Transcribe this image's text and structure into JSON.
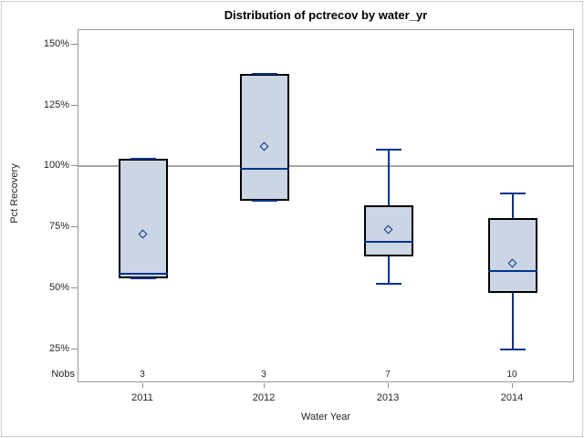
{
  "page": {
    "background": "#ffffff",
    "border_color": "#c9ced3"
  },
  "chart_data": {
    "type": "boxplot",
    "title": "Distribution of pctrecov by water_yr",
    "xlabel": "Water Year",
    "ylabel": "Pct Recovery",
    "nobs_label": "Nobs",
    "categories": [
      "2011",
      "2012",
      "2013",
      "2014"
    ],
    "nobs": [
      3,
      3,
      7,
      10
    ],
    "yticks": [
      150,
      125,
      100,
      75,
      50,
      25
    ],
    "ytick_labels": [
      "150%",
      "125%",
      "100%",
      "75%",
      "50%",
      "25%"
    ],
    "ylim": [
      11,
      156
    ],
    "reference_line": 100,
    "grid": "off",
    "legend": "none",
    "series": [
      {
        "category": "2011",
        "nobs": 3,
        "whisker_low": 54,
        "q1": 54,
        "median": 56,
        "q3": 103,
        "whisker_high": 103,
        "mean": 72
      },
      {
        "category": "2012",
        "nobs": 3,
        "whisker_low": 86,
        "q1": 86,
        "median": 99,
        "q3": 138,
        "whisker_high": 138,
        "mean": 108
      },
      {
        "category": "2013",
        "nobs": 7,
        "whisker_low": 52,
        "q1": 63,
        "median": 69,
        "q3": 84,
        "whisker_high": 107,
        "mean": 74
      },
      {
        "category": "2014",
        "nobs": 10,
        "whisker_low": 25,
        "q1": 48,
        "median": 57,
        "q3": 79,
        "whisker_high": 89,
        "mean": 60
      }
    ],
    "colors": {
      "box_fill": "#ccd5e3",
      "box_border": "#000000",
      "line": "#00338d",
      "mean_marker": "#00338d",
      "reference_line": "#a6a6a6",
      "plot_border": "#95999e",
      "tick": "#8f8f8f",
      "label_text": "#262626",
      "title_text": "#000000"
    }
  }
}
